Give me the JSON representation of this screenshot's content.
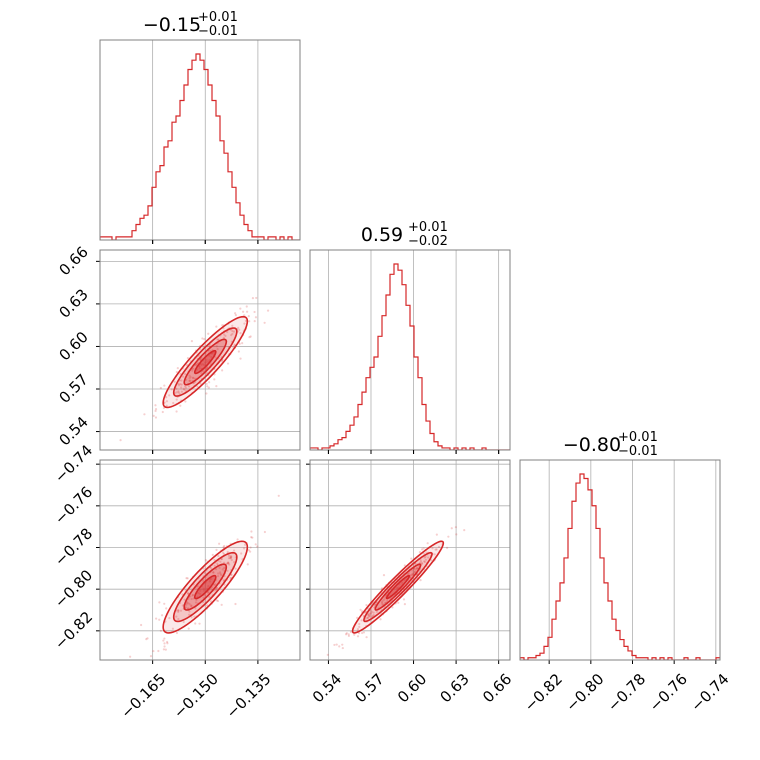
{
  "chart_data": {
    "type": "corner",
    "color": "#d62728",
    "grid": true,
    "panels_1d": [
      {
        "index": 0,
        "title": {
          "value": "−0.15",
          "plus": "+0.01",
          "minus": "−0.01"
        },
        "xlim": [
          -0.18,
          -0.123
        ],
        "bin_edges_start": -0.18,
        "bin_width": 0.00114,
        "counts": [
          1,
          1,
          1,
          0,
          1,
          1,
          1,
          1,
          3,
          5,
          7,
          8,
          11,
          17,
          22,
          24,
          30,
          32,
          38,
          40,
          45,
          50,
          55,
          58,
          60,
          58,
          55,
          50,
          45,
          40,
          32,
          28,
          22,
          17,
          12,
          8,
          5,
          3,
          1,
          1,
          1,
          0,
          1,
          1,
          0,
          1,
          0,
          1,
          0,
          0
        ]
      },
      {
        "index": 1,
        "title": {
          "value": "0.59",
          "plus": "+0.01",
          "minus": "−0.02"
        },
        "xlim": [
          0.527,
          0.668
        ],
        "bin_edges_start": 0.527,
        "bin_width": 0.00282,
        "counts": [
          1,
          1,
          0,
          1,
          1,
          2,
          3,
          5,
          6,
          9,
          12,
          16,
          22,
          28,
          35,
          40,
          45,
          55,
          65,
          75,
          85,
          90,
          87,
          80,
          70,
          60,
          45,
          35,
          22,
          14,
          8,
          4,
          2,
          1,
          1,
          0,
          1,
          0,
          1,
          0,
          1,
          0,
          0,
          1,
          0,
          0,
          0,
          0,
          0,
          0
        ]
      },
      {
        "index": 2,
        "title": {
          "value": "−0.80",
          "plus": "+0.01",
          "minus": "−0.01"
        },
        "xlim": [
          -0.834,
          -0.738
        ],
        "bin_edges_start": -0.834,
        "bin_width": 0.00192,
        "counts": [
          1,
          0,
          1,
          1,
          2,
          3,
          6,
          10,
          18,
          26,
          34,
          45,
          58,
          70,
          78,
          82,
          80,
          75,
          68,
          58,
          45,
          34,
          26,
          18,
          13,
          9,
          6,
          4,
          2,
          1,
          1,
          1,
          0,
          1,
          0,
          1,
          0,
          1,
          0,
          0,
          0,
          1,
          0,
          0,
          1,
          0,
          0,
          0,
          0,
          1
        ]
      }
    ],
    "panels_2d": [
      {
        "row": 1,
        "col": 0,
        "xlim": [
          -0.18,
          -0.123
        ],
        "ylim": [
          0.527,
          0.668
        ],
        "center": [
          -0.15,
          0.589
        ],
        "cov": [
          [
            3.6e-05,
            8.64e-05
          ],
          [
            8.64e-05,
            0.000256
          ]
        ]
      },
      {
        "row": 2,
        "col": 0,
        "xlim": [
          -0.18,
          -0.123
        ],
        "ylim": [
          -0.834,
          -0.738
        ],
        "center": [
          -0.15,
          -0.799
        ],
        "cov": [
          [
            3.6e-05,
            5.76e-05
          ],
          [
            5.76e-05,
            0.000121
          ]
        ]
      },
      {
        "row": 2,
        "col": 1,
        "xlim": [
          0.527,
          0.668
        ],
        "ylim": [
          -0.834,
          -0.738
        ],
        "center": [
          0.589,
          -0.799
        ],
        "cov": [
          [
            0.000256,
            0.000169
          ],
          [
            0.000169,
            0.000121
          ]
        ]
      }
    ],
    "ticks": {
      "param0": {
        "values": [
          -0.165,
          -0.15,
          -0.135
        ],
        "labels": [
          "−0.165",
          "−0.150",
          "−0.135"
        ]
      },
      "param1": {
        "values": [
          0.54,
          0.57,
          0.6,
          0.63,
          0.66
        ],
        "labels": [
          "0.54",
          "0.57",
          "0.60",
          "0.63",
          "0.66"
        ]
      },
      "param2": {
        "values": [
          -0.82,
          -0.8,
          -0.78,
          -0.76,
          -0.74
        ],
        "labels": [
          "−0.82",
          "−0.80",
          "−0.78",
          "−0.76",
          "−0.74"
        ]
      }
    },
    "contour_levels_sigma": [
      0.5,
      1.0,
      1.5,
      2.0
    ]
  }
}
